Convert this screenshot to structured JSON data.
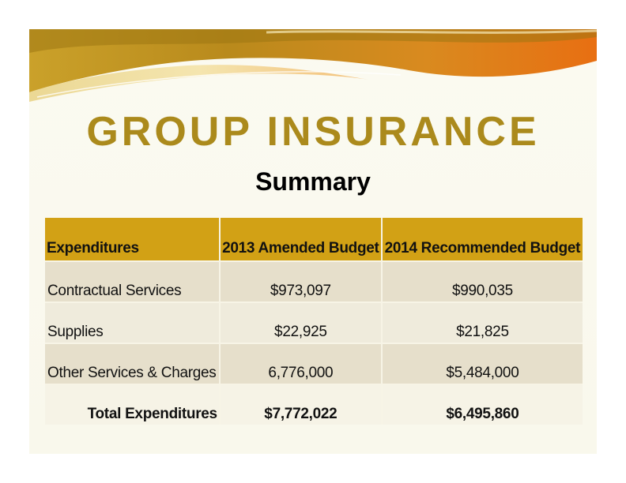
{
  "slide": {
    "title": "GROUP INSURANCE",
    "subtitle": "Summary"
  },
  "table": {
    "headers": [
      "Expenditures",
      "2013 Amended Budget",
      "2014 Recommended Budget"
    ],
    "rows": [
      [
        "Contractual Services",
        "$973,097",
        "$990,035"
      ],
      [
        "Supplies",
        "$22,925",
        "$21,825"
      ],
      [
        "Other Services & Charges",
        "6,776,000",
        "$5,484,000"
      ]
    ],
    "total": [
      "Total Expenditures",
      "$7,772,022",
      "$6,495,860"
    ]
  },
  "colors": {
    "title": "#ab8a1c",
    "header_band": "#d2a115",
    "row_dark": "#e6dfcb",
    "row_light": "#efebdc",
    "swoosh_gold": "#c89a1e",
    "swoosh_orange": "#e07a1a"
  }
}
